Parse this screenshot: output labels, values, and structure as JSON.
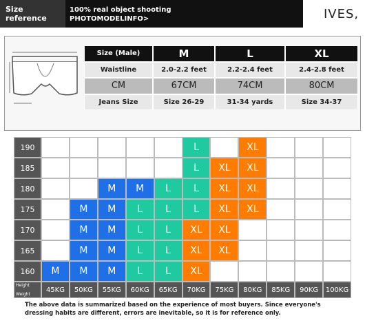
{
  "header": {
    "title": "Size reference",
    "subtitle": "100% real object shooting",
    "link": "PHOTOMODELINFO>",
    "brand": "IVES,"
  },
  "size_table": {
    "rows": [
      [
        "Size (Male)",
        "M",
        "L",
        "XL"
      ],
      [
        "Waistline",
        "2.0-2.2 feet",
        "2.2-2.4 feet",
        "2.4-2.8 feet"
      ],
      [
        "CM",
        "67CM",
        "74CM",
        "80CM"
      ],
      [
        "Jeans Size",
        "Size 26-29",
        "31-34 yards",
        "Size 34-37"
      ]
    ]
  },
  "grid": {
    "height_label": "Height",
    "weight_label": "Weight",
    "heights": [
      "190",
      "185",
      "180",
      "175",
      "170",
      "165",
      "160"
    ],
    "weights": [
      "45KG",
      "50KG",
      "55KG",
      "60KG",
      "65KG",
      "70KG",
      "75KG",
      "80KG",
      "85KG",
      "90KG",
      "100KG"
    ],
    "colors": {
      "M": "#1f6fe6",
      "L": "#1fcaa0",
      "XL": "#ff7c00"
    },
    "cells": [
      [
        null,
        null,
        null,
        null,
        null,
        "L",
        null,
        "XL",
        null,
        null,
        null
      ],
      [
        null,
        null,
        null,
        null,
        null,
        "L",
        "XL",
        "XL",
        null,
        null,
        null
      ],
      [
        null,
        null,
        "M",
        "M",
        "L",
        "L",
        "XL",
        "XL",
        null,
        null,
        null
      ],
      [
        null,
        "M",
        "M",
        "L",
        "L",
        "L",
        "XL",
        "XL",
        null,
        null,
        null
      ],
      [
        null,
        "M",
        "M",
        "L",
        "L",
        "XL",
        "XL",
        null,
        null,
        null,
        null
      ],
      [
        null,
        "M",
        "M",
        "L",
        "L",
        "XL",
        "XL",
        null,
        null,
        null,
        null
      ],
      [
        "M",
        "M",
        "M",
        "L",
        "L",
        "XL",
        null,
        null,
        null,
        null,
        null
      ]
    ]
  },
  "footnote": "The above data is summarized based on the experience of most buyers. Since everyone's dressing habits are different, errors are inevitable, so it is for reference only."
}
